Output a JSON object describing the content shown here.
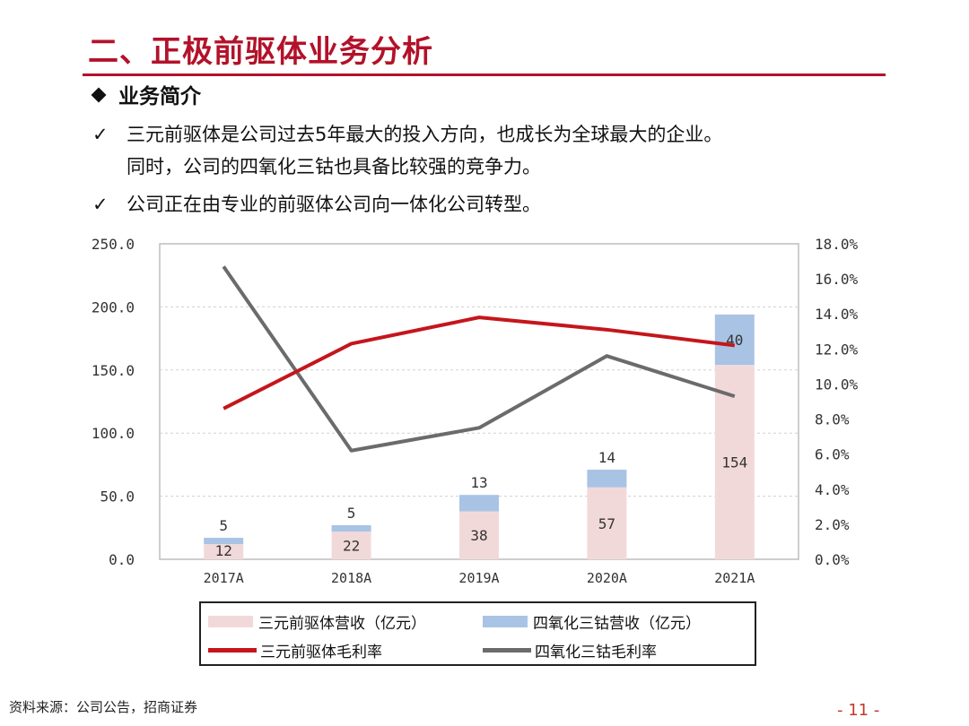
{
  "page": {
    "title": "二、正极前驱体业务分析",
    "section_heading": "业务简介",
    "check_mark": "✓",
    "bullets": [
      "三元前驱体是公司过去5年最大的投入方向，也成长为全球最大的企业。",
      "同时，公司的四氧化三钴也具备比较强的竞争力。",
      "公司正在由专业的前驱体公司向一体化公司转型。"
    ],
    "source": "资料来源：公司公告，招商证券",
    "page_number": "- 11 -"
  },
  "colors": {
    "title": "#b3122a",
    "ternary_bar": "#f2d9d9",
    "cobalt_bar": "#a9c3e5",
    "ternary_line": "#c4161c",
    "cobalt_line": "#6b6b6b"
  },
  "chart_data": {
    "type": "bar",
    "stacked": true,
    "categories": [
      "2017A",
      "2018A",
      "2019A",
      "2020A",
      "2021A"
    ],
    "series": [
      {
        "name": "三元前驱体营收（亿元）",
        "type": "bar",
        "axis": "left",
        "values": [
          12,
          22,
          38,
          57,
          154
        ]
      },
      {
        "name": "四氧化三钴营收（亿元）",
        "type": "bar",
        "axis": "left",
        "values": [
          5,
          5,
          13,
          14,
          40
        ]
      },
      {
        "name": "三元前驱体毛利率",
        "type": "line",
        "axis": "right",
        "values": [
          8.6,
          12.3,
          13.8,
          13.1,
          12.2
        ]
      },
      {
        "name": "四氧化三钴毛利率",
        "type": "line",
        "axis": "right",
        "values": [
          16.7,
          6.2,
          7.5,
          11.6,
          9.3
        ]
      }
    ],
    "ylim_left": [
      0,
      250
    ],
    "ylim_right": [
      0,
      18
    ],
    "yticks_left": [
      "0.0",
      "50.0",
      "100.0",
      "150.0",
      "200.0",
      "250.0"
    ],
    "yticks_right": [
      "0.0%",
      "2.0%",
      "4.0%",
      "6.0%",
      "8.0%",
      "10.0%",
      "12.0%",
      "14.0%",
      "16.0%",
      "18.0%"
    ],
    "grid": true,
    "legend_position": "bottom"
  }
}
